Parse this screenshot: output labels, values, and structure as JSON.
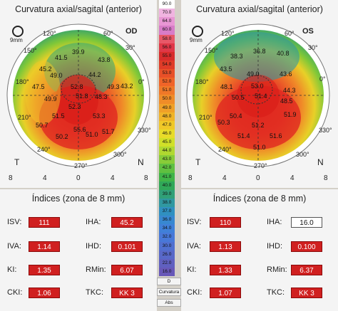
{
  "left_panel": {
    "title": "Curvatura axial/sagital (anterior)",
    "eye": "OD",
    "zoom": "9mm",
    "temporal": "T",
    "nasal": "N",
    "axis_ticks": [
      "8",
      "4",
      "0",
      "4",
      "8"
    ],
    "degree_labels": [
      "120°",
      "60°",
      "150°",
      "30°",
      "180°",
      "0°",
      "210°",
      "330°",
      "240°",
      "300°",
      "270°"
    ],
    "values": [
      "39.9",
      "41.5",
      "45.2",
      "43.8",
      "49.0",
      "44.2",
      "47.5",
      "52.8",
      "49.3",
      "43.2",
      "49.9",
      "51.8",
      "48.3",
      "52.3",
      "51.5",
      "50.7",
      "53.3",
      "55.6",
      "51.0",
      "50.2",
      "51.7"
    ],
    "indices_title": "Índices (zona de 8 mm)",
    "indices": [
      {
        "label": "ISV:",
        "value": "111"
      },
      {
        "label": "IHA:",
        "value": "45.2"
      },
      {
        "label": "IVA:",
        "value": "1.14"
      },
      {
        "label": "IHD:",
        "value": "0.101"
      },
      {
        "label": "KI:",
        "value": "1.35"
      },
      {
        "label": "RMin:",
        "value": "6.07"
      },
      {
        "label": "CKI:",
        "value": "1.06"
      },
      {
        "label": "TKC:",
        "value": "KK 3"
      }
    ]
  },
  "right_panel": {
    "title": "Curvatura axial/sagital (anterior)",
    "eye": "OS",
    "zoom": "9mm",
    "temporal": "T",
    "nasal": "N",
    "axis_ticks": [
      "8",
      "4",
      "0",
      "4",
      "8"
    ],
    "degree_labels": [
      "60°",
      "120°",
      "30°",
      "150°",
      "0°",
      "180°",
      "330°",
      "210°",
      "300°",
      "240°",
      "270°"
    ],
    "values": [
      "36.8",
      "38.3",
      "40.8",
      "43.5",
      "49.0",
      "43.6",
      "48.1",
      "53.0",
      "44.3",
      "50.5",
      "51.4",
      "48.5",
      "50.4",
      "51.9",
      "50.3",
      "51.2",
      "51.6",
      "51.4",
      "51.0"
    ],
    "indices_title": "Índices (zona de 8 mm)",
    "indices": [
      {
        "label": "ISV:",
        "value": "110"
      },
      {
        "label": "IHA:",
        "value": "16.0"
      },
      {
        "label": "IVA:",
        "value": "1.13"
      },
      {
        "label": "IHD:",
        "value": "0.100"
      },
      {
        "label": "KI:",
        "value": "1.33"
      },
      {
        "label": "RMin:",
        "value": "6.37"
      },
      {
        "label": "CKI:",
        "value": "1.07"
      },
      {
        "label": "TKC:",
        "value": "KK 3"
      }
    ]
  },
  "scale": {
    "values": [
      "90.0",
      "70.0",
      "64.0",
      "60.0",
      "58.0",
      "56.0",
      "55.0",
      "54.0",
      "53.0",
      "52.0",
      "51.0",
      "50.0",
      "49.0",
      "48.0",
      "47.0",
      "46.0",
      "45.0",
      "44.0",
      "43.0",
      "42.0",
      "41.0",
      "40.0",
      "39.0",
      "38.0",
      "37.0",
      "36.0",
      "34.0",
      "32.0",
      "30.0",
      "26.0",
      "22.0",
      "16.0"
    ],
    "colors": [
      "#ffffff",
      "#f0b4e0",
      "#e896d4",
      "#d87cc8",
      "#e85868",
      "#e03848",
      "#d82c2c",
      "#e03c28",
      "#e85028",
      "#f06428",
      "#f07828",
      "#f08c28",
      "#f0a028",
      "#f0b428",
      "#f0c828",
      "#e8dc28",
      "#d0e028",
      "#b0d830",
      "#88cc38",
      "#60c040",
      "#40b448",
      "#30a858",
      "#30a078",
      "#3098a0",
      "#3090c0",
      "#3888d0",
      "#4080d8",
      "#4878d8",
      "#5070d0",
      "#5868c8",
      "#6060c0",
      "#6858b8"
    ],
    "footer_d": "D",
    "footer_curv": "Curvatura",
    "footer_abs": "Abs"
  }
}
